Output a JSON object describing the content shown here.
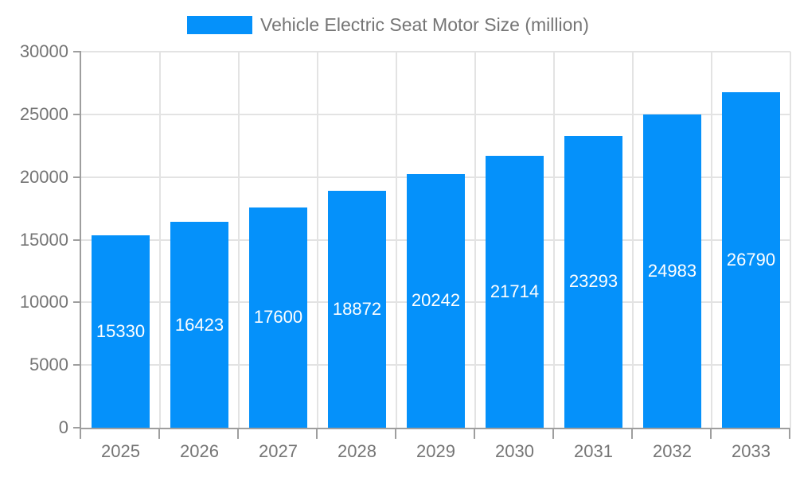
{
  "chart_data": {
    "type": "bar",
    "title": "Vehicle Electric Seat Motor Size (million)",
    "legend": [
      "Vehicle Electric Seat Motor Size (million)"
    ],
    "legend_position": "top-center",
    "categories": [
      "2025",
      "2026",
      "2027",
      "2028",
      "2029",
      "2030",
      "2031",
      "2032",
      "2033"
    ],
    "series": [
      {
        "name": "Vehicle Electric Seat Motor Size (million)",
        "values": [
          15330,
          16423,
          17600,
          18872,
          20242,
          21714,
          23293,
          24983,
          26790
        ]
      }
    ],
    "value_labels_shown": true,
    "value_label_placement": "inside-bar-middle",
    "xlabel": "",
    "ylabel": "",
    "ylim": [
      0,
      30000
    ],
    "yticks": [
      0,
      5000,
      10000,
      15000,
      20000,
      25000,
      30000
    ],
    "grid": true,
    "colors": {
      "bar": "#0591fa",
      "value_label": "#ffffff",
      "axis_text": "#757575",
      "axis_line": "#9e9e9e",
      "grid_line": "#e3e3e3",
      "background": "#ffffff"
    }
  }
}
